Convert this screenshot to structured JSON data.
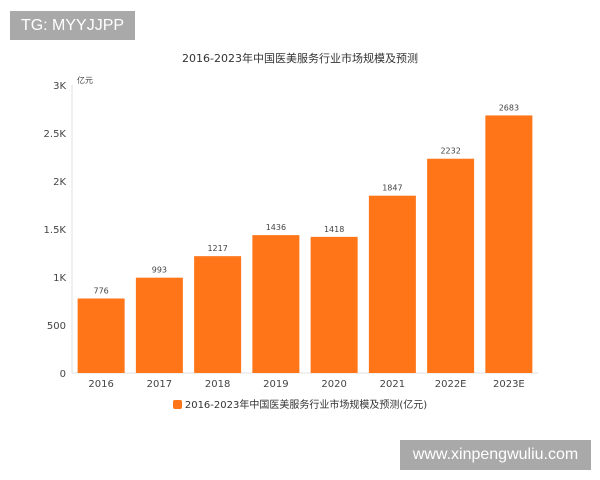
{
  "watermarks": {
    "top_left": "TG: MYYJJPP",
    "bottom_right": "www.xinpengwuliu.com"
  },
  "chart_data": {
    "type": "bar",
    "title": "2016-2023年中国医美服务行业市场规模及预测",
    "ylabel": "亿元",
    "xlabel": "",
    "categories": [
      "2016",
      "2017",
      "2018",
      "2019",
      "2020",
      "2021",
      "2022E",
      "2023E"
    ],
    "series": [
      {
        "name": "2016-2023年中国医美服务行业市场规模及预测(亿元)",
        "values": [
          776,
          993,
          1217,
          1436,
          1418,
          1847,
          2232,
          2683
        ],
        "color": "#ff7518"
      }
    ],
    "ylim": [
      0,
      3000
    ],
    "yticks": [
      0,
      500,
      1000,
      1500,
      2000,
      2500,
      3000
    ],
    "ytick_labels": [
      "0",
      "500",
      "1K",
      "1.5K",
      "2K",
      "2.5K",
      "3K"
    ],
    "data_labels": true,
    "grid": false,
    "legend_position": "bottom"
  }
}
